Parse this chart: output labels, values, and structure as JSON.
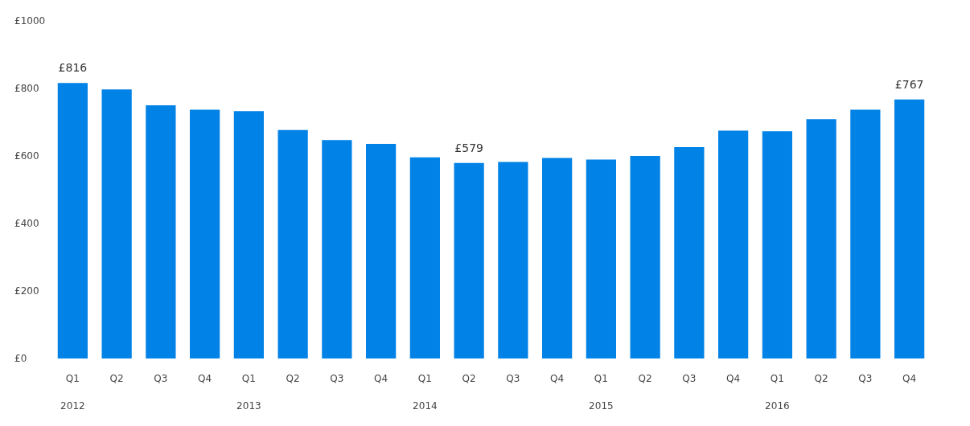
{
  "chart_data": {
    "type": "bar",
    "categories": [
      "Q1\n2012",
      "Q2",
      "Q3",
      "Q4",
      "Q1\n2013",
      "Q2",
      "Q3",
      "Q4",
      "Q1\n2014",
      "Q2",
      "Q3",
      "Q4",
      "Q1\n2015",
      "Q2",
      "Q3",
      "Q4",
      "Q1\n2016",
      "Q2",
      "Q3",
      "Q4"
    ],
    "values": [
      816,
      797,
      750,
      737,
      733,
      677,
      647,
      636,
      596,
      579,
      582,
      594,
      589,
      600,
      626,
      675,
      673,
      709,
      737,
      767
    ],
    "value_labels": [
      "£816",
      null,
      null,
      null,
      null,
      null,
      null,
      null,
      null,
      "£579",
      null,
      null,
      null,
      null,
      null,
      null,
      null,
      null,
      null,
      "£767"
    ],
    "color": "#0082e6",
    "ylim": [
      0,
      1000
    ],
    "yticks": [
      {
        "value": 0,
        "label": "£0"
      },
      {
        "value": 200,
        "label": "£200"
      },
      {
        "value": 400,
        "label": "£400"
      },
      {
        "value": 600,
        "label": "£600"
      },
      {
        "value": 800,
        "label": "£800"
      },
      {
        "value": 1000,
        "label": "£1000"
      }
    ],
    "grid": false
  }
}
